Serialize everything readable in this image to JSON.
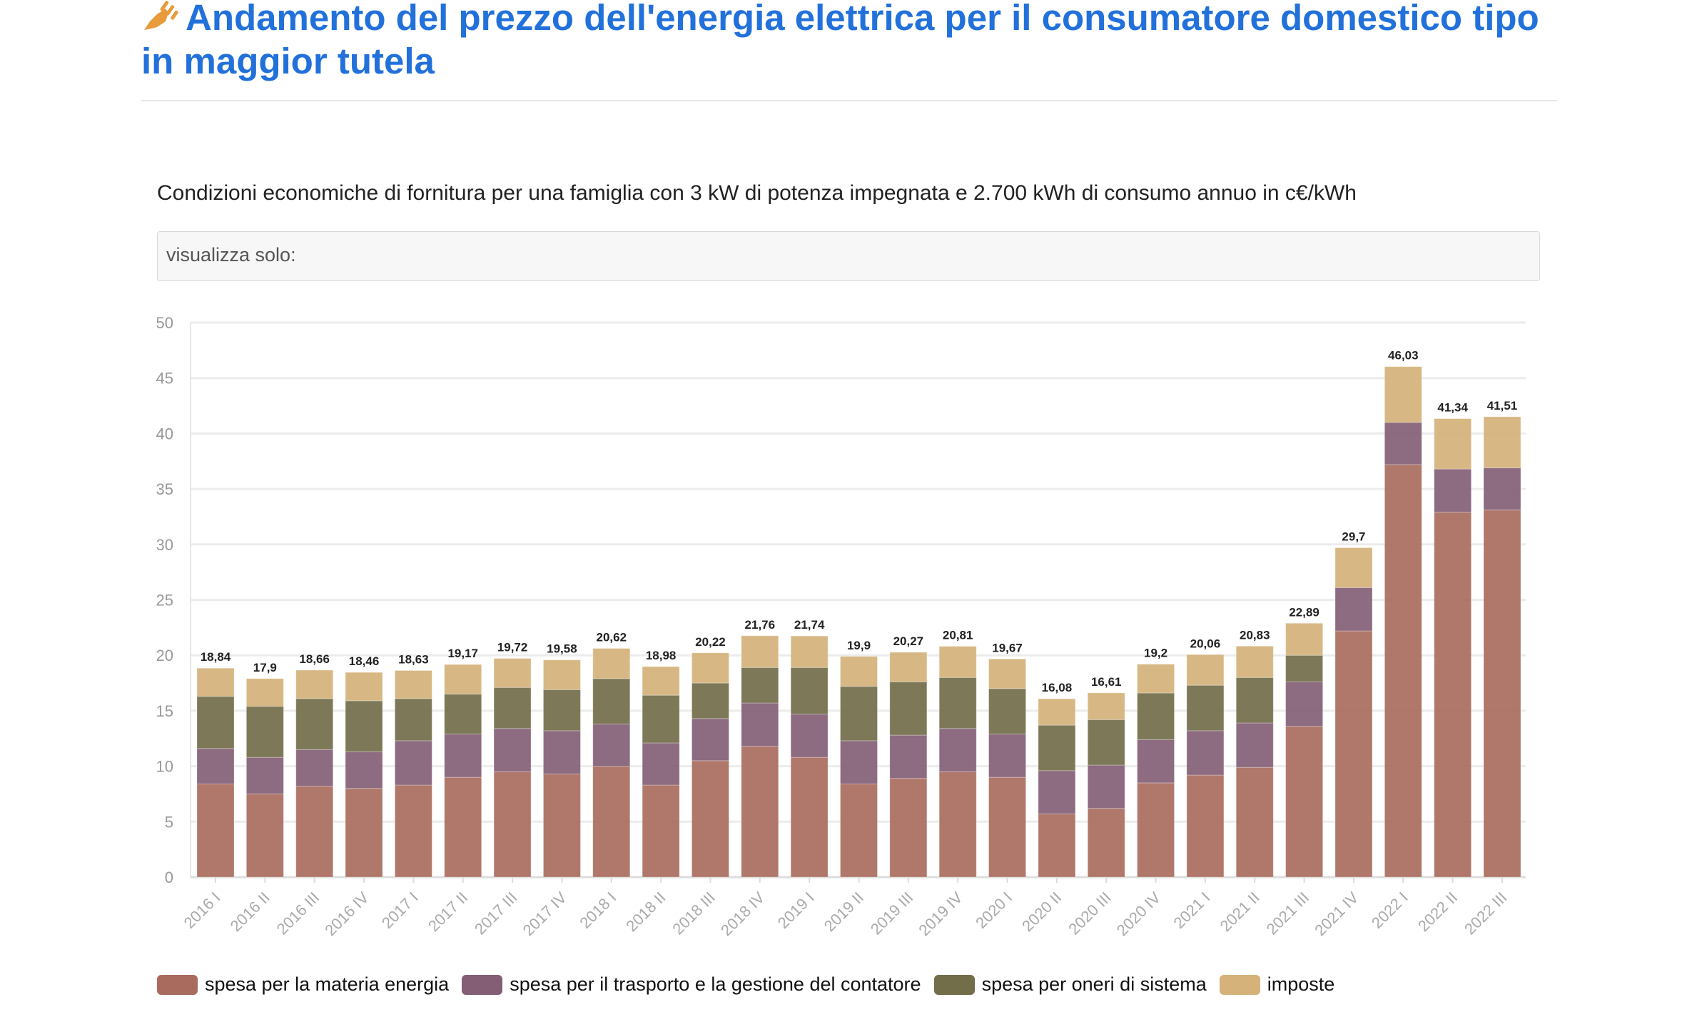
{
  "header": {
    "title": "Andamento del prezzo dell'energia elettrica per il consumatore domestico tipo in maggior tutela",
    "icon": "plug-icon"
  },
  "subtitle": "Condizioni economiche di fornitura per una famiglia con 3 kW di potenza impegnata e 2.700 kWh di consumo annuo in c€/kWh",
  "filter": {
    "label": "visualizza solo:"
  },
  "chart_data": {
    "type": "bar",
    "stacked": true,
    "grid": true,
    "legend_position": "bottom",
    "ylim": [
      0,
      50
    ],
    "yticks": [
      0,
      5,
      10,
      15,
      20,
      25,
      30,
      35,
      40,
      45,
      50
    ],
    "categories": [
      "2016 I",
      "2016 II",
      "2016 III",
      "2016 IV",
      "2017 I",
      "2017 II",
      "2017 III",
      "2017 IV",
      "2018 I",
      "2018 II",
      "2018 III",
      "2018 IV",
      "2019 I",
      "2019 II",
      "2019 III",
      "2019 IV",
      "2020 I",
      "2020 II",
      "2020 III",
      "2020 IV",
      "2021 I",
      "2021 II",
      "2021 III",
      "2021 IV",
      "2022 I",
      "2022 II",
      "2022 III"
    ],
    "totals": [
      18.84,
      17.9,
      18.66,
      18.46,
      18.63,
      19.17,
      19.72,
      19.58,
      20.62,
      18.98,
      20.22,
      21.76,
      21.74,
      19.9,
      20.27,
      20.81,
      19.67,
      16.08,
      16.61,
      19.2,
      20.06,
      20.83,
      22.89,
      29.7,
      46.03,
      41.34,
      41.51
    ],
    "total_labels": [
      "18,84",
      "17,9",
      "18,66",
      "18,46",
      "18,63",
      "19,17",
      "19,72",
      "19,58",
      "20,62",
      "18,98",
      "20,22",
      "21,76",
      "21,74",
      "19,9",
      "20,27",
      "20,81",
      "19,67",
      "16,08",
      "16,61",
      "19,2",
      "20,06",
      "20,83",
      "22,89",
      "29,7",
      "46,03",
      "41,34",
      "41,51"
    ],
    "series": [
      {
        "name": "spesa per la materia energia",
        "color": "#a96b5e",
        "values": [
          8.4,
          7.5,
          8.2,
          8.0,
          8.3,
          9.0,
          9.5,
          9.3,
          10.0,
          8.3,
          10.5,
          11.8,
          10.8,
          8.4,
          8.9,
          9.5,
          9.0,
          5.7,
          6.2,
          8.5,
          9.2,
          9.9,
          13.6,
          22.2,
          37.2,
          32.9,
          33.1
        ]
      },
      {
        "name": "spesa per il trasporto e la gestione del contatore",
        "color": "#835e75",
        "values": [
          3.2,
          3.3,
          3.3,
          3.3,
          4.0,
          3.9,
          3.9,
          3.9,
          3.8,
          3.8,
          3.8,
          3.9,
          3.9,
          3.9,
          3.9,
          3.9,
          3.9,
          3.9,
          3.9,
          3.9,
          4.0,
          4.0,
          4.0,
          3.9,
          3.8,
          3.9,
          3.8
        ]
      },
      {
        "name": "spesa per oneri di sistema",
        "color": "#726e4a",
        "values": [
          4.7,
          4.6,
          4.6,
          4.6,
          3.8,
          3.6,
          3.7,
          3.7,
          4.1,
          4.3,
          3.2,
          3.2,
          4.2,
          4.9,
          4.8,
          4.6,
          4.1,
          4.1,
          4.1,
          4.2,
          4.1,
          4.1,
          2.4,
          0,
          0,
          0,
          0
        ]
      },
      {
        "name": "imposte",
        "color": "#d4b27a",
        "values": [
          2.54,
          2.5,
          2.56,
          2.56,
          2.53,
          2.67,
          2.62,
          2.68,
          2.72,
          2.58,
          2.72,
          2.86,
          2.84,
          2.7,
          2.67,
          2.81,
          2.67,
          2.38,
          2.41,
          2.6,
          2.76,
          2.83,
          2.89,
          3.6,
          5.03,
          4.54,
          4.61
        ]
      }
    ]
  }
}
